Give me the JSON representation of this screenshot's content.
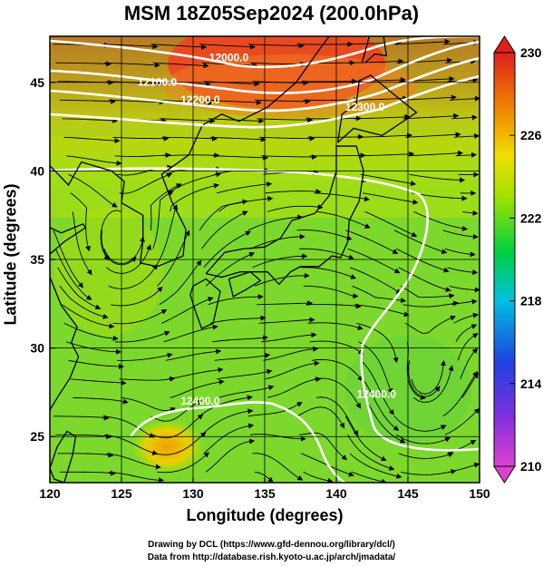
{
  "title": "MSM 18Z05Sep2024 (200.0hPa)",
  "xlabel": "Longitude (degrees)",
  "ylabel": "Latitude  (degrees)",
  "credits": {
    "line1": "Drawing by DCL (https://www.gfd-dennou.org/library/dcl/)",
    "line2": "Data from http://database.rish.kyoto-u.ac.jp/arch/jmadata/"
  },
  "map": {
    "lon_range": [
      120,
      150
    ],
    "lat_range": [
      22.4,
      47.6
    ],
    "lon_ticks": [
      120,
      125,
      130,
      135,
      140,
      145,
      150
    ],
    "lat_ticks": [
      25,
      30,
      35,
      40,
      45
    ],
    "grid": true
  },
  "colorbar": {
    "min": 210,
    "max": 230,
    "ticks": [
      210,
      214,
      218,
      222,
      226,
      230
    ],
    "colors": [
      "#e040d0",
      "#2040e0",
      "#00c0e0",
      "#00d040",
      "#a0e000",
      "#f0e000",
      "#f08000",
      "#e02020"
    ]
  },
  "contours": [
    {
      "label": "12000.0",
      "lon": 132.5,
      "lat": 46.2
    },
    {
      "label": "12100.0",
      "lon": 127.5,
      "lat": 44.8
    },
    {
      "label": "12200.0",
      "lon": 130.5,
      "lat": 43.8
    },
    {
      "label": "12300.0",
      "lon": 142.0,
      "lat": 43.4
    },
    {
      "label": "12400.0",
      "lon": 130.5,
      "lat": 26.8
    },
    {
      "label": "12400.0",
      "lon": 142.8,
      "lat": 27.2
    }
  ]
}
